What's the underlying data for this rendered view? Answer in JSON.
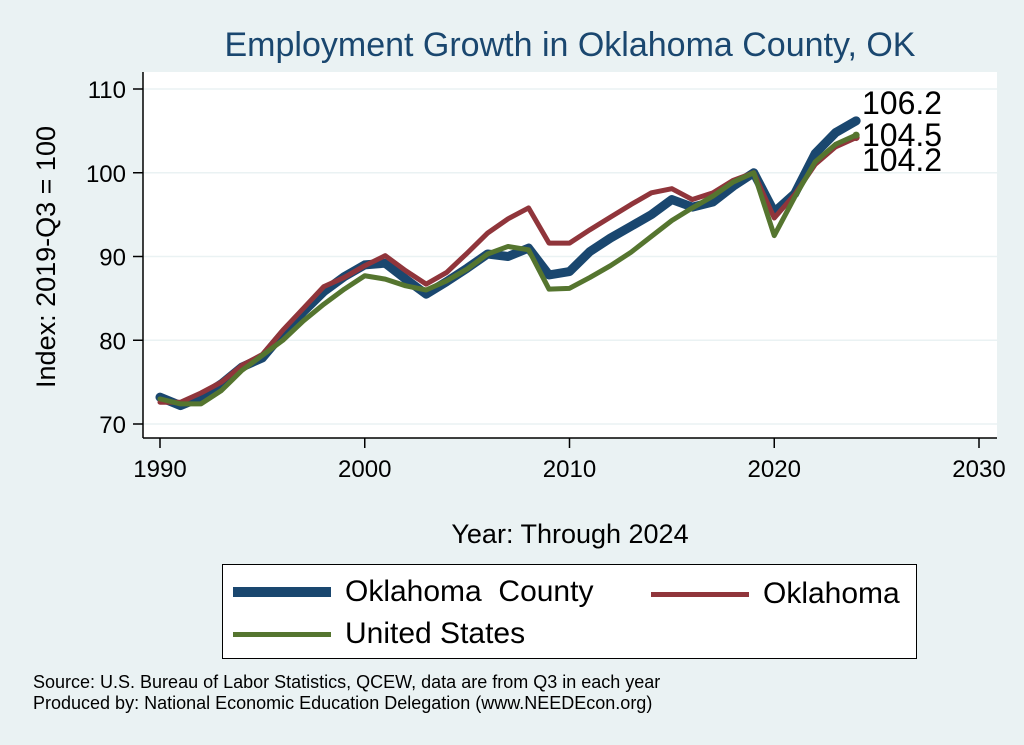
{
  "chart_data": {
    "type": "line",
    "title": "Employment Growth in Oklahoma County, OK",
    "xlabel": "Year: Through 2024",
    "ylabel": "Index: 2019-Q3 = 100",
    "xlim": [
      1990,
      2030
    ],
    "ylim": [
      70,
      110
    ],
    "xticks": [
      1990,
      2000,
      2010,
      2020,
      2030
    ],
    "yticks": [
      70,
      80,
      90,
      100,
      110
    ],
    "grid": true,
    "legend_position": "bottom",
    "x": [
      1990,
      1991,
      1992,
      1993,
      1994,
      1995,
      1996,
      1997,
      1998,
      1999,
      2000,
      2001,
      2002,
      2003,
      2004,
      2005,
      2006,
      2007,
      2008,
      2009,
      2010,
      2011,
      2012,
      2013,
      2014,
      2015,
      2016,
      2017,
      2018,
      2019,
      2020,
      2021,
      2022,
      2023,
      2024
    ],
    "series": [
      {
        "name": "Oklahoma  County",
        "color": "#1a476f",
        "values": [
          73.2,
          72.2,
          73.2,
          74.8,
          76.8,
          77.9,
          80.8,
          83.4,
          85.8,
          87.6,
          89.0,
          89.2,
          87.3,
          85.5,
          87.0,
          88.6,
          90.3,
          90.0,
          91.0,
          87.8,
          88.2,
          90.6,
          92.2,
          93.6,
          95.0,
          96.8,
          95.9,
          96.5,
          98.4,
          100.0,
          95.3,
          97.5,
          102.3,
          104.8,
          106.2
        ],
        "width": 9,
        "end_label": "106.2"
      },
      {
        "name": "Oklahoma",
        "color": "#90353b",
        "values": [
          72.6,
          72.6,
          73.7,
          75.0,
          77.0,
          78.3,
          81.2,
          83.8,
          86.4,
          87.5,
          88.9,
          90.1,
          88.3,
          86.7,
          88.1,
          90.4,
          92.8,
          94.5,
          95.8,
          91.6,
          91.6,
          93.2,
          94.7,
          96.2,
          97.6,
          98.1,
          96.8,
          97.6,
          99.1,
          100.0,
          94.6,
          97.4,
          101.0,
          103.1,
          104.2
        ],
        "width": 5,
        "end_label": "104.2"
      },
      {
        "name": "United States",
        "color": "#55752f",
        "values": [
          73.0,
          72.4,
          72.4,
          74.0,
          76.4,
          78.2,
          80.0,
          82.3,
          84.3,
          86.1,
          87.7,
          87.3,
          86.5,
          86.0,
          87.1,
          88.5,
          90.3,
          91.2,
          90.8,
          86.1,
          86.2,
          87.5,
          88.9,
          90.5,
          92.4,
          94.3,
          95.8,
          97.2,
          98.9,
          100.0,
          92.5,
          97.1,
          101.3,
          103.4,
          104.5
        ],
        "width": 5,
        "end_label": "104.5"
      }
    ]
  },
  "source": {
    "line1": "Source: U.S. Bureau of Labor Statistics, QCEW, data are from Q3 in each year",
    "line2": "Produced by: National Economic Education Delegation (www.NEEDEcon.org)"
  }
}
